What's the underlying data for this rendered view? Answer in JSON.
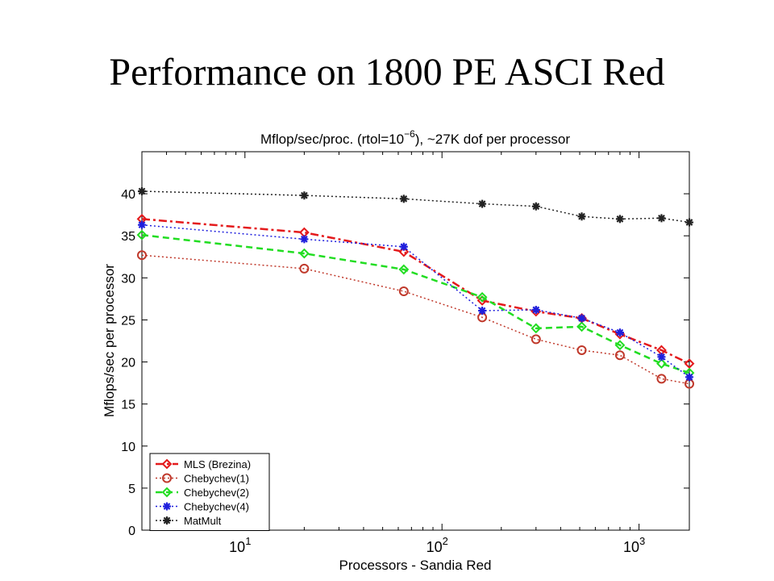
{
  "slide": {
    "title": "Performance on 1800 PE ASCI Red"
  },
  "chart_data": {
    "type": "line",
    "title_main": "Mflop/sec/proc. (rtol=10",
    "title_exp": "−6",
    "title_tail": "), ~27K dof per processor",
    "xlabel": "Processors - Sandia Red",
    "ylabel": "Mflops/sec per processor",
    "xscale": "log",
    "xlim": [
      3,
      1800
    ],
    "ylim": [
      0,
      45
    ],
    "yticks": [
      0,
      5,
      10,
      15,
      20,
      25,
      30,
      35,
      40
    ],
    "xtick_labels": [
      {
        "value": 10,
        "base": "10",
        "exp": "1"
      },
      {
        "value": 100,
        "base": "10",
        "exp": "2"
      },
      {
        "value": 1000,
        "base": "10",
        "exp": "3"
      }
    ],
    "x": [
      3,
      20,
      64,
      160,
      300,
      512,
      800,
      1300,
      1800
    ],
    "legend_position": "bottom-left",
    "grid": false,
    "series": [
      {
        "name": "MLS (Brezina)",
        "values": [
          37.0,
          35.4,
          33.1,
          27.3,
          26.0,
          25.2,
          23.3,
          21.4,
          19.8
        ],
        "color": "#e41a1c",
        "dash": "10,4,3,4",
        "marker": "diamond",
        "width": 2.5
      },
      {
        "name": "Chebychev(1)",
        "values": [
          32.7,
          31.1,
          28.4,
          25.3,
          22.7,
          21.4,
          20.8,
          18.0,
          17.4
        ],
        "color": "#c0392b",
        "dash": "2,3",
        "marker": "circle",
        "width": 1.5
      },
      {
        "name": "Chebychev(2)",
        "values": [
          35.1,
          32.9,
          31.0,
          27.7,
          24.0,
          24.2,
          22.0,
          19.8,
          18.7
        ],
        "color": "#22dd22",
        "dash": "8,5",
        "marker": "diamond",
        "width": 2.5
      },
      {
        "name": "Chebychev(4)",
        "values": [
          36.3,
          34.6,
          33.7,
          26.1,
          26.2,
          25.2,
          23.5,
          20.6,
          18.2
        ],
        "color": "#1f1fdd",
        "dash": "2,3",
        "marker": "star",
        "width": 1.5
      },
      {
        "name": "MatMult",
        "values": [
          40.3,
          39.8,
          39.4,
          38.8,
          38.5,
          37.3,
          37.0,
          37.1,
          36.6
        ],
        "color": "#222222",
        "dash": "2,3",
        "marker": "star",
        "width": 1.5
      }
    ]
  }
}
